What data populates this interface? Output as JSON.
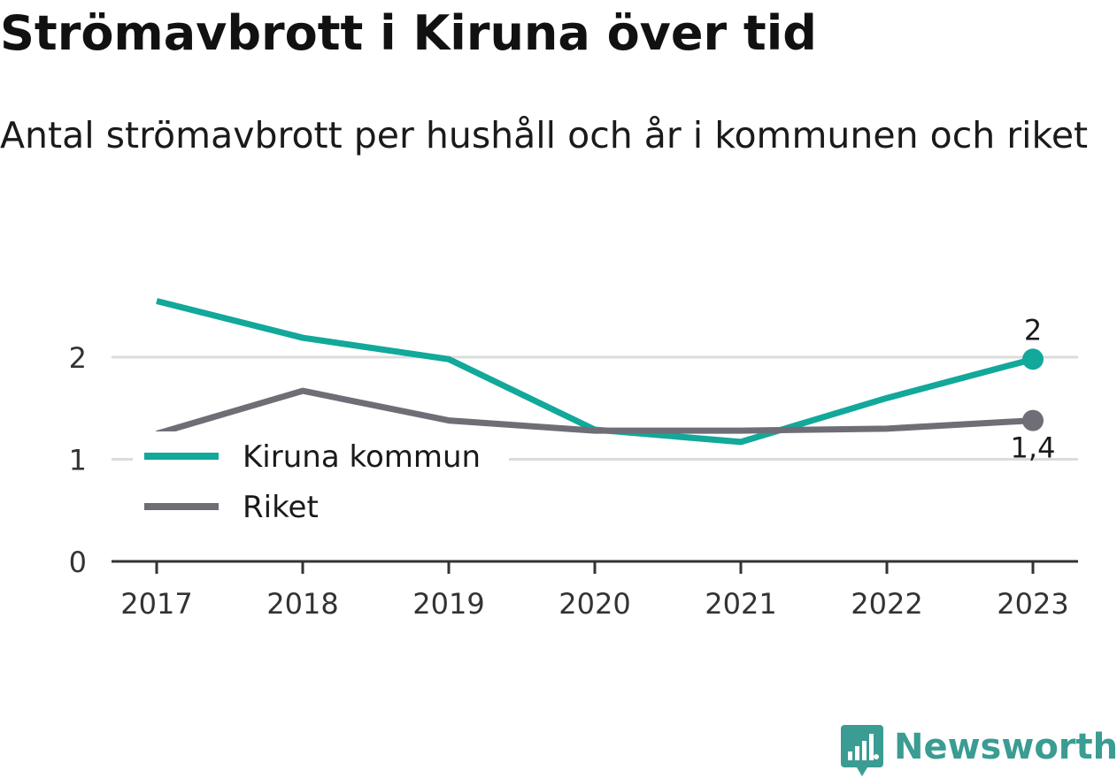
{
  "header": {
    "title": "Strömavbrott i Kiruna över tid",
    "subtitle": "Antal strömavbrott per hushåll och år i kommunen och riket"
  },
  "chart_data": {
    "type": "line",
    "x": [
      "2017",
      "2018",
      "2019",
      "2020",
      "2021",
      "2022",
      "2023"
    ],
    "ylim": [
      0,
      2.75
    ],
    "yticks": [
      0,
      1,
      2
    ],
    "ytick_labels": [
      "0",
      "1",
      "2"
    ],
    "grid": true,
    "legend_placement": "center-left",
    "series": [
      {
        "name": "Kiruna kommun",
        "color": "#12a89a",
        "values": [
          2.55,
          2.19,
          1.98,
          1.29,
          1.17,
          1.6,
          1.98
        ],
        "end_label": "2"
      },
      {
        "name": "Riket",
        "color": "#6f6e76",
        "values": [
          1.25,
          1.67,
          1.38,
          1.28,
          1.28,
          1.3,
          1.38
        ],
        "end_label": "1,4"
      }
    ]
  },
  "branding": {
    "name": "Newsworthy",
    "icon": "newsworthy-logo-icon",
    "color": "#3a9c92"
  }
}
